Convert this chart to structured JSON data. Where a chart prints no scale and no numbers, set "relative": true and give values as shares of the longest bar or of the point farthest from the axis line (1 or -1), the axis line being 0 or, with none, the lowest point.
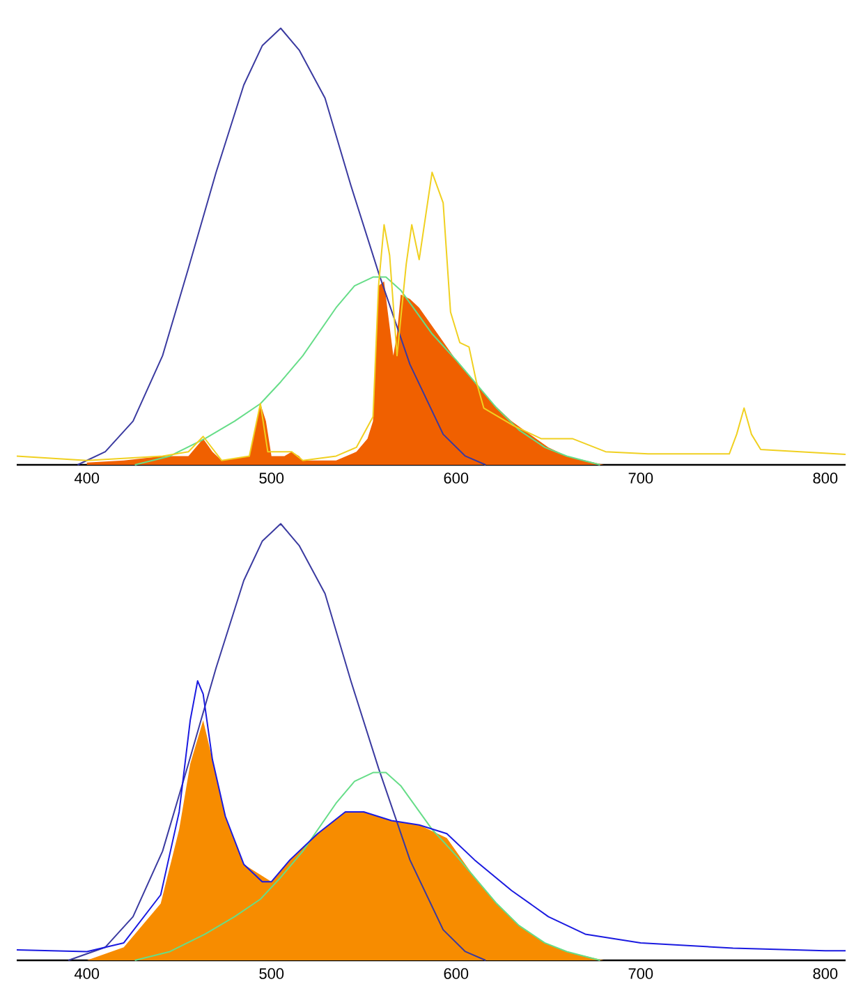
{
  "chart_data": [
    {
      "type": "line",
      "relative": true,
      "xlim": [
        362,
        811
      ],
      "xticks": [
        400,
        500,
        600,
        700,
        800
      ],
      "tick_labels": "x",
      "series": [
        {
          "type": "area",
          "color": "#f06000",
          "x": [
            400,
            420,
            441,
            455,
            463,
            468,
            473,
            488,
            492,
            494,
            497,
            500,
            507,
            511,
            515,
            517,
            535,
            546,
            552,
            555,
            557,
            558,
            561,
            563,
            566,
            568,
            570,
            575,
            580,
            590,
            600,
            610,
            620,
            630,
            640,
            650,
            660,
            670,
            680
          ],
          "values": [
            0.005,
            0.01,
            0.02,
            0.02,
            0.06,
            0.03,
            0.01,
            0.02,
            0.1,
            0.14,
            0.1,
            0.02,
            0.02,
            0.03,
            0.02,
            0.01,
            0.01,
            0.03,
            0.06,
            0.1,
            0.3,
            0.41,
            0.42,
            0.35,
            0.25,
            0.3,
            0.39,
            0.38,
            0.36,
            0.3,
            0.24,
            0.19,
            0.14,
            0.1,
            0.07,
            0.04,
            0.02,
            0.01,
            0
          ]
        },
        {
          "type": "line",
          "color": "#3a3aa0",
          "x": [
            395,
            410,
            425,
            441,
            455,
            470,
            485,
            495,
            505,
            515,
            529,
            543,
            558,
            575,
            593,
            605,
            616
          ],
          "values": [
            0,
            0.03,
            0.1,
            0.25,
            0.45,
            0.67,
            0.87,
            0.96,
            1,
            0.95,
            0.84,
            0.64,
            0.44,
            0.23,
            0.07,
            0.02,
            0
          ]
        },
        {
          "type": "line",
          "color": "#66dd88",
          "x": [
            426,
            445,
            464,
            480,
            494,
            505,
            517,
            535,
            545,
            555,
            562,
            570,
            587,
            600,
            610,
            622,
            634,
            648,
            660,
            678
          ],
          "values": [
            0,
            0.02,
            0.06,
            0.1,
            0.14,
            0.19,
            0.25,
            0.36,
            0.41,
            0.43,
            0.43,
            0.4,
            0.3,
            0.24,
            0.19,
            0.13,
            0.08,
            0.04,
            0.02,
            0
          ]
        },
        {
          "type": "line",
          "color": "#f0d020",
          "x": [
            362,
            400,
            441,
            455,
            463,
            473,
            488,
            494,
            498,
            511,
            517,
            535,
            546,
            555,
            558,
            561,
            564,
            568,
            573,
            576,
            580,
            587,
            593,
            597,
            602,
            607,
            611,
            615,
            631,
            646,
            663,
            681,
            704,
            748,
            752,
            756,
            760,
            765,
            811
          ],
          "values": [
            0.02,
            0.01,
            0.02,
            0.03,
            0.065,
            0.01,
            0.02,
            0.14,
            0.03,
            0.03,
            0.01,
            0.02,
            0.04,
            0.11,
            0.41,
            0.55,
            0.48,
            0.25,
            0.46,
            0.55,
            0.47,
            0.67,
            0.6,
            0.35,
            0.28,
            0.27,
            0.19,
            0.13,
            0.09,
            0.06,
            0.06,
            0.03,
            0.025,
            0.025,
            0.07,
            0.13,
            0.07,
            0.035,
            0.024
          ]
        }
      ]
    },
    {
      "type": "line",
      "relative": true,
      "xlim": [
        362,
        811
      ],
      "xticks": [
        400,
        500,
        600,
        700,
        800
      ],
      "tick_labels": "x",
      "series": [
        {
          "type": "area",
          "color": "#f78c00",
          "x": [
            400,
            420,
            440,
            450,
            456,
            463,
            468,
            475,
            485,
            500,
            510,
            525,
            540,
            550,
            565,
            580,
            595,
            610,
            622,
            634,
            648,
            660,
            680
          ],
          "values": [
            0,
            0.03,
            0.13,
            0.3,
            0.45,
            0.55,
            0.46,
            0.33,
            0.22,
            0.18,
            0.23,
            0.29,
            0.34,
            0.34,
            0.32,
            0.31,
            0.28,
            0.19,
            0.13,
            0.08,
            0.04,
            0.02,
            0
          ]
        },
        {
          "type": "line",
          "color": "#3a3aa0",
          "x": [
            390,
            410,
            425,
            441,
            455,
            470,
            485,
            495,
            505,
            515,
            529,
            543,
            558,
            575,
            593,
            605,
            616
          ],
          "values": [
            0,
            0.03,
            0.1,
            0.25,
            0.45,
            0.67,
            0.87,
            0.96,
            1,
            0.95,
            0.84,
            0.64,
            0.44,
            0.23,
            0.07,
            0.02,
            0
          ]
        },
        {
          "type": "line",
          "color": "#66dd88",
          "x": [
            426,
            445,
            464,
            480,
            494,
            505,
            517,
            535,
            545,
            555,
            562,
            570,
            587,
            600,
            610,
            622,
            634,
            648,
            660,
            678
          ],
          "values": [
            0,
            0.02,
            0.06,
            0.1,
            0.14,
            0.19,
            0.25,
            0.36,
            0.41,
            0.43,
            0.43,
            0.4,
            0.3,
            0.24,
            0.19,
            0.13,
            0.08,
            0.04,
            0.02,
            0
          ]
        },
        {
          "type": "line",
          "color": "#1a1ae0",
          "x": [
            362,
            400,
            420,
            440,
            450,
            456,
            460,
            463,
            468,
            475,
            485,
            495,
            500,
            510,
            525,
            540,
            550,
            565,
            580,
            595,
            610,
            630,
            650,
            670,
            700,
            750,
            800,
            811
          ],
          "values": [
            0.024,
            0.02,
            0.04,
            0.15,
            0.34,
            0.55,
            0.64,
            0.61,
            0.46,
            0.33,
            0.22,
            0.18,
            0.18,
            0.23,
            0.29,
            0.34,
            0.34,
            0.32,
            0.31,
            0.29,
            0.23,
            0.16,
            0.1,
            0.06,
            0.04,
            0.028,
            0.022,
            0.022
          ]
        }
      ]
    }
  ]
}
